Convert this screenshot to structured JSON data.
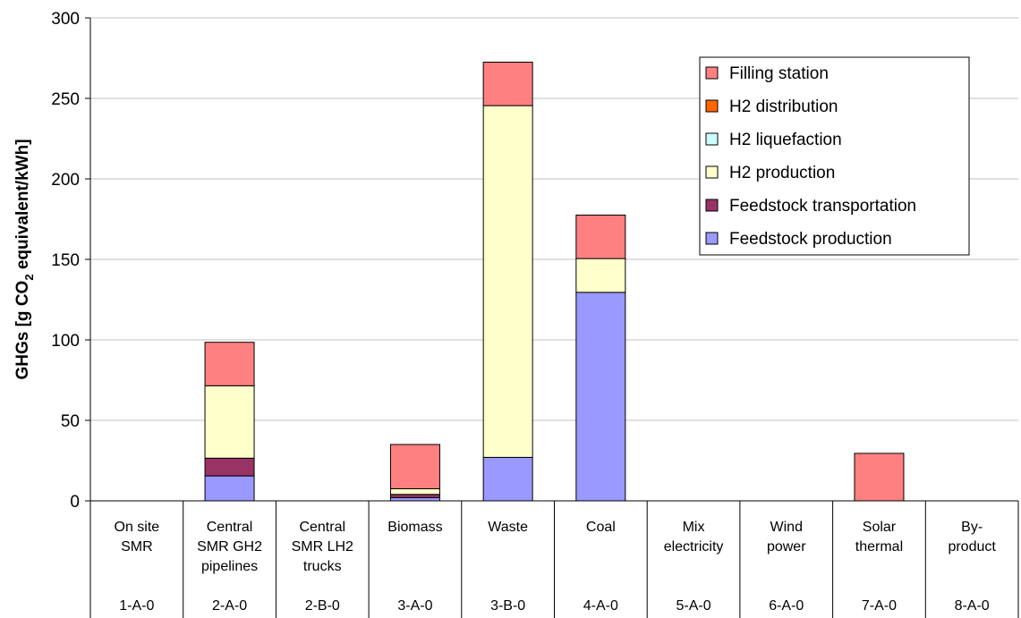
{
  "chart_data": {
    "type": "bar",
    "stacked": true,
    "ylabel": "GHGs [g CO2 equivalent/kWh]",
    "ylabel_parts": [
      "GHGs [g CO",
      "2",
      " equivalent/kWh]"
    ],
    "ylim": [
      0,
      300
    ],
    "yticks": [
      0,
      50,
      100,
      150,
      200,
      250,
      300
    ],
    "grid": true,
    "legend_position": "top-right",
    "categories": [
      {
        "lines": [
          "On site",
          "SMR"
        ],
        "code": "1-A-0"
      },
      {
        "lines": [
          "Central",
          "SMR GH2",
          "pipelines"
        ],
        "code": "2-A-0"
      },
      {
        "lines": [
          "Central",
          "SMR LH2",
          "trucks"
        ],
        "code": "2-B-0"
      },
      {
        "lines": [
          "Biomass"
        ],
        "code": "3-A-0"
      },
      {
        "lines": [
          "Waste"
        ],
        "code": "3-B-0"
      },
      {
        "lines": [
          "Coal"
        ],
        "code": "4-A-0"
      },
      {
        "lines": [
          "Mix",
          "electricity"
        ],
        "code": "5-A-0"
      },
      {
        "lines": [
          "Wind",
          "power"
        ],
        "code": "6-A-0"
      },
      {
        "lines": [
          "Solar",
          "thermal"
        ],
        "code": "7-A-0"
      },
      {
        "lines": [
          "By-",
          "product"
        ],
        "code": "8-A-0"
      }
    ],
    "series": [
      {
        "name": "Feedstock production",
        "color": "#9999ff",
        "values": [
          0,
          15.5,
          0,
          2,
          27,
          129.5,
          0,
          0,
          0,
          0
        ]
      },
      {
        "name": "Feedstock transportation",
        "color": "#993366",
        "values": [
          0,
          11,
          0,
          2,
          0,
          0,
          0,
          0,
          0,
          0
        ]
      },
      {
        "name": "H2 production",
        "color": "#ffffcc",
        "values": [
          0,
          45,
          0,
          3.5,
          218.5,
          21,
          0,
          0,
          0,
          0
        ]
      },
      {
        "name": "H2 liquefaction",
        "color": "#ccffff",
        "values": [
          0,
          0,
          0,
          0,
          0,
          0,
          0,
          0,
          0,
          0
        ]
      },
      {
        "name": "H2 distribution",
        "color": "#ff6600",
        "values": [
          0,
          0,
          0,
          0,
          0,
          0,
          0,
          0,
          0,
          0
        ]
      },
      {
        "name": "Filling station",
        "color": "#ff8080",
        "values": [
          0,
          27,
          0,
          27.5,
          27,
          27,
          0,
          0,
          29.5,
          0
        ]
      }
    ],
    "legend_order": [
      "Filling station",
      "H2 distribution",
      "H2 liquefaction",
      "H2 production",
      "Feedstock transportation",
      "Feedstock production"
    ]
  }
}
